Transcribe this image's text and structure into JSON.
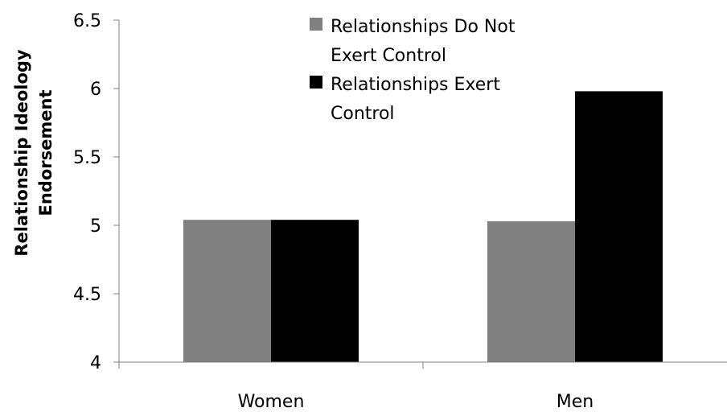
{
  "chart_data": {
    "type": "bar",
    "categories": [
      "Women",
      "Men"
    ],
    "series": [
      {
        "name_lines": [
          "Relationships Do Not",
          "Exert Control"
        ],
        "color": "#808080",
        "values": [
          5.04,
          5.03
        ]
      },
      {
        "name_lines": [
          "Relationships Exert",
          "Control"
        ],
        "color": "#000000",
        "values": [
          5.04,
          5.98
        ]
      }
    ],
    "ylabel_lines": [
      "Relationship Ideology",
      "Endorsement"
    ],
    "ylim": [
      4,
      6.5
    ],
    "yticks": [
      "4",
      "4.5",
      "5",
      "5.5",
      "6",
      "6.5"
    ],
    "legend_position": "top-center",
    "grid": false
  }
}
